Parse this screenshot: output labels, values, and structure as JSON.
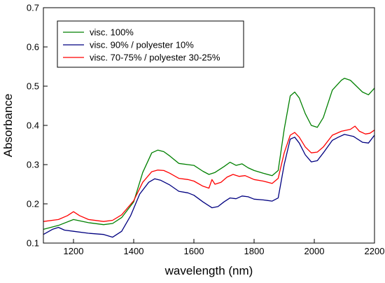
{
  "chart_data": {
    "type": "line",
    "title": "",
    "xlabel": "wavelength (nm)",
    "ylabel": "Absorbance",
    "xlim": [
      1100,
      2200
    ],
    "ylim": [
      0.1,
      0.7
    ],
    "xticks": [
      1200,
      1400,
      1600,
      1800,
      2000,
      2200
    ],
    "yticks": [
      0.1,
      0.2,
      0.3,
      0.4,
      0.5,
      0.6,
      0.7
    ],
    "grid": false,
    "legend_position": "top-left",
    "series": [
      {
        "name": "visc. 100%",
        "color": "#008000",
        "points": [
          [
            1100,
            0.135
          ],
          [
            1150,
            0.145
          ],
          [
            1200,
            0.16
          ],
          [
            1250,
            0.152
          ],
          [
            1300,
            0.147
          ],
          [
            1330,
            0.15
          ],
          [
            1360,
            0.165
          ],
          [
            1400,
            0.205
          ],
          [
            1430,
            0.28
          ],
          [
            1460,
            0.33
          ],
          [
            1480,
            0.337
          ],
          [
            1500,
            0.333
          ],
          [
            1520,
            0.322
          ],
          [
            1550,
            0.303
          ],
          [
            1580,
            0.3
          ],
          [
            1600,
            0.298
          ],
          [
            1630,
            0.283
          ],
          [
            1650,
            0.275
          ],
          [
            1670,
            0.28
          ],
          [
            1700,
            0.295
          ],
          [
            1720,
            0.306
          ],
          [
            1740,
            0.298
          ],
          [
            1760,
            0.302
          ],
          [
            1780,
            0.292
          ],
          [
            1800,
            0.285
          ],
          [
            1830,
            0.278
          ],
          [
            1860,
            0.272
          ],
          [
            1880,
            0.285
          ],
          [
            1900,
            0.39
          ],
          [
            1920,
            0.475
          ],
          [
            1935,
            0.485
          ],
          [
            1950,
            0.47
          ],
          [
            1970,
            0.43
          ],
          [
            1990,
            0.4
          ],
          [
            2010,
            0.395
          ],
          [
            2030,
            0.42
          ],
          [
            2060,
            0.49
          ],
          [
            2090,
            0.515
          ],
          [
            2100,
            0.52
          ],
          [
            2120,
            0.515
          ],
          [
            2140,
            0.5
          ],
          [
            2160,
            0.485
          ],
          [
            2180,
            0.478
          ],
          [
            2200,
            0.495
          ]
        ]
      },
      {
        "name": "visc. 90% / polyester 10%",
        "color": "#000080",
        "points": [
          [
            1100,
            0.122
          ],
          [
            1130,
            0.135
          ],
          [
            1150,
            0.14
          ],
          [
            1170,
            0.133
          ],
          [
            1200,
            0.13
          ],
          [
            1250,
            0.125
          ],
          [
            1300,
            0.122
          ],
          [
            1330,
            0.115
          ],
          [
            1360,
            0.13
          ],
          [
            1390,
            0.17
          ],
          [
            1420,
            0.225
          ],
          [
            1450,
            0.255
          ],
          [
            1470,
            0.264
          ],
          [
            1490,
            0.26
          ],
          [
            1520,
            0.248
          ],
          [
            1550,
            0.232
          ],
          [
            1580,
            0.228
          ],
          [
            1600,
            0.222
          ],
          [
            1630,
            0.205
          ],
          [
            1660,
            0.19
          ],
          [
            1680,
            0.193
          ],
          [
            1700,
            0.205
          ],
          [
            1720,
            0.215
          ],
          [
            1740,
            0.213
          ],
          [
            1760,
            0.22
          ],
          [
            1780,
            0.218
          ],
          [
            1800,
            0.212
          ],
          [
            1830,
            0.21
          ],
          [
            1860,
            0.207
          ],
          [
            1880,
            0.215
          ],
          [
            1900,
            0.3
          ],
          [
            1920,
            0.365
          ],
          [
            1935,
            0.37
          ],
          [
            1950,
            0.355
          ],
          [
            1970,
            0.325
          ],
          [
            1990,
            0.307
          ],
          [
            2010,
            0.31
          ],
          [
            2030,
            0.33
          ],
          [
            2060,
            0.362
          ],
          [
            2080,
            0.37
          ],
          [
            2100,
            0.377
          ],
          [
            2130,
            0.372
          ],
          [
            2160,
            0.357
          ],
          [
            2180,
            0.355
          ],
          [
            2200,
            0.375
          ]
        ]
      },
      {
        "name": "visc. 70-75% / polyester 30-25%",
        "color": "#ff0000",
        "points": [
          [
            1100,
            0.155
          ],
          [
            1150,
            0.16
          ],
          [
            1180,
            0.17
          ],
          [
            1200,
            0.18
          ],
          [
            1220,
            0.17
          ],
          [
            1250,
            0.16
          ],
          [
            1300,
            0.155
          ],
          [
            1330,
            0.158
          ],
          [
            1360,
            0.172
          ],
          [
            1400,
            0.208
          ],
          [
            1430,
            0.255
          ],
          [
            1460,
            0.282
          ],
          [
            1480,
            0.286
          ],
          [
            1500,
            0.285
          ],
          [
            1520,
            0.278
          ],
          [
            1550,
            0.265
          ],
          [
            1580,
            0.262
          ],
          [
            1600,
            0.258
          ],
          [
            1630,
            0.245
          ],
          [
            1650,
            0.24
          ],
          [
            1660,
            0.262
          ],
          [
            1670,
            0.25
          ],
          [
            1690,
            0.255
          ],
          [
            1710,
            0.268
          ],
          [
            1730,
            0.275
          ],
          [
            1750,
            0.27
          ],
          [
            1770,
            0.272
          ],
          [
            1800,
            0.262
          ],
          [
            1830,
            0.258
          ],
          [
            1860,
            0.252
          ],
          [
            1880,
            0.265
          ],
          [
            1900,
            0.33
          ],
          [
            1920,
            0.375
          ],
          [
            1935,
            0.382
          ],
          [
            1950,
            0.37
          ],
          [
            1970,
            0.345
          ],
          [
            1990,
            0.33
          ],
          [
            2010,
            0.332
          ],
          [
            2030,
            0.345
          ],
          [
            2060,
            0.375
          ],
          [
            2090,
            0.385
          ],
          [
            2120,
            0.39
          ],
          [
            2135,
            0.398
          ],
          [
            2150,
            0.385
          ],
          [
            2170,
            0.378
          ],
          [
            2185,
            0.38
          ],
          [
            2200,
            0.388
          ]
        ]
      }
    ]
  }
}
